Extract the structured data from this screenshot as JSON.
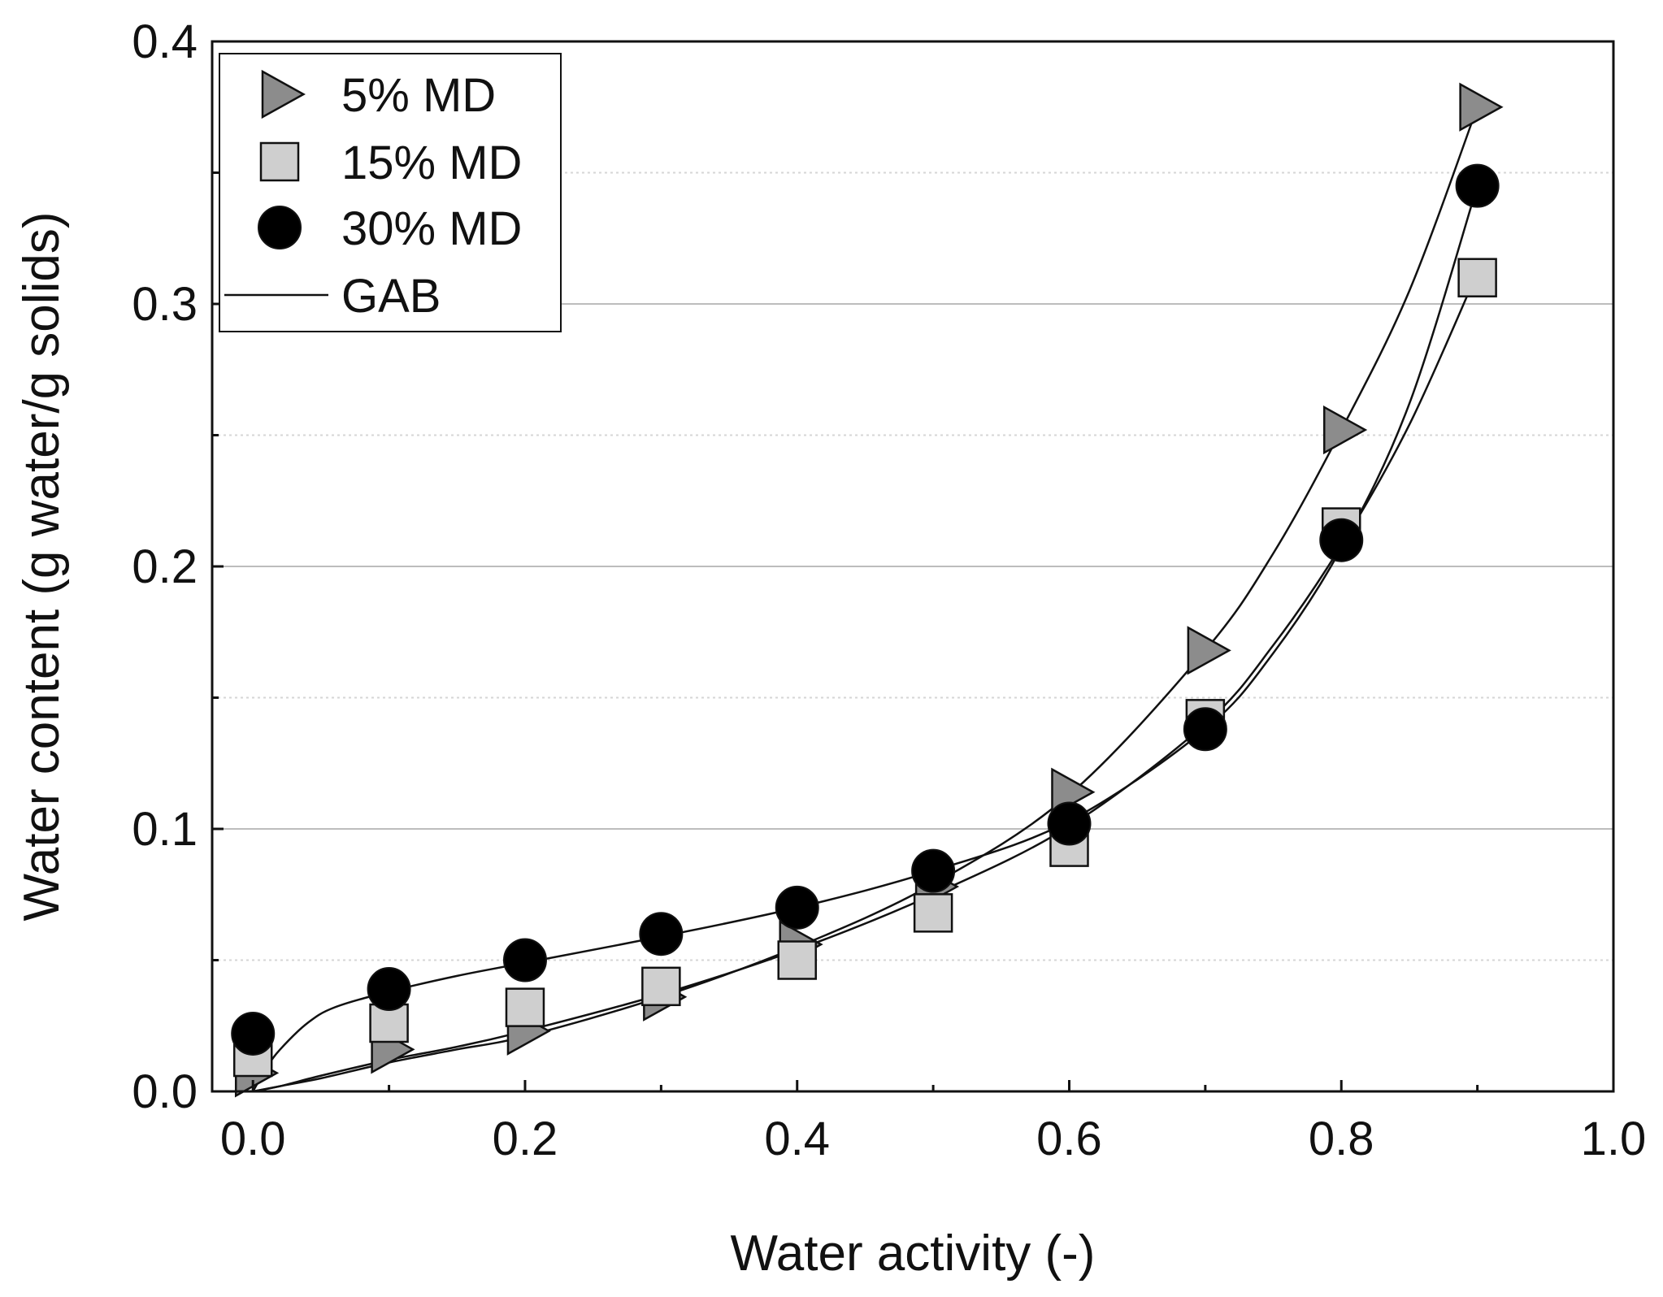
{
  "chart_data": {
    "type": "scatter",
    "xlabel": "Water activity (-)",
    "ylabel": "Water content (g water/g solids)",
    "xlim": [
      -0.03,
      1.0
    ],
    "ylim": [
      0.0,
      0.4
    ],
    "x_ticks": [
      "0.0",
      "0.2",
      "0.4",
      "0.6",
      "0.8",
      "1.0"
    ],
    "x_tick_values": [
      0.0,
      0.2,
      0.4,
      0.6,
      0.8,
      1.0
    ],
    "y_ticks": [
      "0.0",
      "0.1",
      "0.2",
      "0.3",
      "0.4"
    ],
    "y_tick_values": [
      0.0,
      0.1,
      0.2,
      0.3,
      0.4
    ],
    "grid": "horizontal major (solid) and minor (dotted)",
    "legend_position": "top-left",
    "series": [
      {
        "name": "5% MD",
        "marker": "right-triangle",
        "color": "#8c8c8c",
        "x": [
          0.0,
          0.1,
          0.2,
          0.3,
          0.4,
          0.5,
          0.6,
          0.7,
          0.8,
          0.9
        ],
        "y": [
          0.007,
          0.016,
          0.023,
          0.036,
          0.056,
          0.078,
          0.114,
          0.168,
          0.252,
          0.375
        ]
      },
      {
        "name": "15% MD",
        "marker": "square",
        "color": "#cfcfcf",
        "x": [
          0.0,
          0.1,
          0.2,
          0.3,
          0.4,
          0.5,
          0.6,
          0.7,
          0.8,
          0.9
        ],
        "y": [
          0.013,
          0.026,
          0.032,
          0.04,
          0.05,
          0.068,
          0.093,
          0.142,
          0.215,
          0.31
        ]
      },
      {
        "name": "30% MD",
        "marker": "circle",
        "color": "#000000",
        "x": [
          0.0,
          0.1,
          0.2,
          0.3,
          0.4,
          0.5,
          0.6,
          0.7,
          0.8,
          0.9
        ],
        "y": [
          0.022,
          0.039,
          0.05,
          0.06,
          0.07,
          0.084,
          0.102,
          0.138,
          0.21,
          0.345
        ]
      }
    ],
    "fit_lines": [
      {
        "name": "GAB",
        "x": [
          0.0,
          0.02,
          0.05,
          0.1,
          0.15,
          0.2,
          0.3,
          0.4,
          0.5,
          0.6,
          0.7,
          0.75,
          0.8,
          0.85,
          0.9
        ],
        "y": [
          0.0,
          0.002,
          0.005,
          0.011,
          0.016,
          0.021,
          0.036,
          0.055,
          0.079,
          0.113,
          0.168,
          0.205,
          0.252,
          0.305,
          0.375
        ]
      },
      {
        "name": "GAB",
        "x": [
          0.0,
          0.02,
          0.05,
          0.1,
          0.15,
          0.2,
          0.3,
          0.4,
          0.5,
          0.6,
          0.7,
          0.75,
          0.8,
          0.85,
          0.9
        ],
        "y": [
          0.0,
          0.002,
          0.006,
          0.012,
          0.017,
          0.023,
          0.037,
          0.054,
          0.075,
          0.101,
          0.14,
          0.17,
          0.208,
          0.254,
          0.312
        ]
      },
      {
        "name": "GAB",
        "x": [
          0.0,
          0.01,
          0.02,
          0.04,
          0.06,
          0.1,
          0.15,
          0.2,
          0.3,
          0.4,
          0.5,
          0.6,
          0.7,
          0.75,
          0.8,
          0.85,
          0.9
        ],
        "y": [
          0.0,
          0.009,
          0.016,
          0.026,
          0.032,
          0.038,
          0.044,
          0.049,
          0.059,
          0.07,
          0.084,
          0.103,
          0.138,
          0.167,
          0.207,
          0.262,
          0.345
        ]
      }
    ]
  }
}
